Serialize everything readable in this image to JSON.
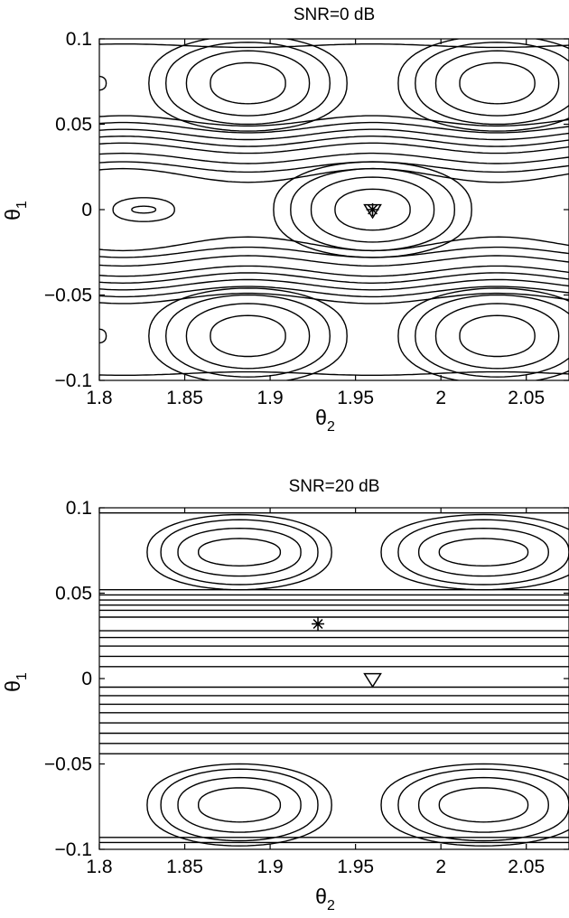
{
  "chart_data": [
    {
      "type": "contour",
      "title": "SNR=0 dB",
      "xlabel": "θ",
      "xlabel_sub": "2",
      "ylabel": "θ",
      "ylabel_sub": "1",
      "xlim": [
        1.8,
        2.075
      ],
      "ylim": [
        -0.1,
        0.1
      ],
      "xticks": [
        1.8,
        1.85,
        1.9,
        1.95,
        2,
        2.05
      ],
      "xtick_labels": [
        "1.8",
        "1.85",
        "1.9",
        "1.95",
        "2",
        "2.05"
      ],
      "yticks": [
        -0.1,
        -0.05,
        0,
        0.05,
        0.1
      ],
      "ytick_labels": [
        "−0.1",
        "−0.05",
        "0",
        "0.05",
        "0.1"
      ],
      "markers": [
        {
          "symbol": "asterisk",
          "x": 1.96,
          "y": 0.0
        },
        {
          "symbol": "triangle-down",
          "x": 1.96,
          "y": 0.0
        }
      ],
      "loops": [
        {
          "cx": 1.887,
          "cy": 0.074,
          "rx": [
            0.022,
            0.036,
            0.048,
            0.058
          ],
          "ry": [
            0.012,
            0.019,
            0.024,
            0.028
          ]
        },
        {
          "cx": 2.033,
          "cy": 0.074,
          "rx": [
            0.022,
            0.036,
            0.048,
            0.058
          ],
          "ry": [
            0.012,
            0.019,
            0.024,
            0.028
          ]
        },
        {
          "cx": 1.887,
          "cy": -0.074,
          "rx": [
            0.022,
            0.036,
            0.048,
            0.058
          ],
          "ry": [
            0.012,
            0.019,
            0.024,
            0.028
          ]
        },
        {
          "cx": 2.033,
          "cy": -0.074,
          "rx": [
            0.022,
            0.036,
            0.048,
            0.058
          ],
          "ry": [
            0.012,
            0.019,
            0.024,
            0.028
          ]
        },
        {
          "cx": 1.96,
          "cy": 0.0,
          "rx": [
            0.022,
            0.036,
            0.048,
            0.058
          ],
          "ry": [
            0.012,
            0.019,
            0.024,
            0.028
          ]
        },
        {
          "cx": 1.826,
          "cy": 0.0,
          "rx": [
            0.007,
            0.018
          ],
          "ry": [
            0.002,
            0.007
          ]
        },
        {
          "cx": 1.8,
          "cy": 0.074,
          "rx": [
            0.004
          ],
          "ry": [
            0.004
          ]
        },
        {
          "cx": 1.8,
          "cy": -0.074,
          "rx": [
            0.004
          ],
          "ry": [
            0.004
          ]
        }
      ],
      "waves": [
        {
          "y0": 0.036,
          "amp": 0.003
        },
        {
          "y0": 0.04,
          "amp": 0.003
        },
        {
          "y0": 0.044,
          "amp": 0.003
        },
        {
          "y0": 0.048,
          "amp": 0.003
        },
        {
          "y0": 0.052,
          "amp": 0.003
        },
        {
          "y0": 0.03,
          "amp": 0.003
        },
        {
          "y0": 0.025,
          "amp": 0.003
        },
        {
          "y0": 0.02,
          "amp": 0.004
        },
        {
          "y0": -0.02,
          "amp": 0.004
        },
        {
          "y0": -0.025,
          "amp": 0.003
        },
        {
          "y0": -0.03,
          "amp": 0.003
        },
        {
          "y0": -0.036,
          "amp": 0.003
        },
        {
          "y0": -0.04,
          "amp": 0.003
        },
        {
          "y0": -0.044,
          "amp": 0.003
        },
        {
          "y0": -0.048,
          "amp": 0.003
        },
        {
          "y0": -0.052,
          "amp": 0.003
        },
        {
          "y0": 0.096,
          "amp": 0.001
        },
        {
          "y0": -0.096,
          "amp": 0.001
        }
      ],
      "wave_center": 1.96,
      "wave_period": 0.146
    },
    {
      "type": "contour",
      "title": "SNR=20 dB",
      "xlabel": "θ",
      "xlabel_sub": "2",
      "ylabel": "θ",
      "ylabel_sub": "1",
      "xlim": [
        1.8,
        2.075
      ],
      "ylim": [
        -0.1,
        0.1
      ],
      "xticks": [
        1.8,
        1.85,
        1.9,
        1.95,
        2,
        2.05
      ],
      "xtick_labels": [
        "1.8",
        "1.85",
        "1.9",
        "1.95",
        "2",
        "2.05"
      ],
      "yticks": [
        -0.1,
        -0.05,
        0,
        0.05,
        0.1
      ],
      "ytick_labels": [
        "−0.1",
        "−0.05",
        "0",
        "0.05",
        "0.1"
      ],
      "markers": [
        {
          "symbol": "asterisk",
          "x": 1.928,
          "y": 0.032
        },
        {
          "symbol": "triangle-down",
          "x": 1.96,
          "y": 0.0
        }
      ],
      "loops": [
        {
          "cx": 1.882,
          "cy": 0.074,
          "rx": [
            0.024,
            0.036,
            0.046,
            0.054
          ],
          "ry": [
            0.008,
            0.014,
            0.019,
            0.022
          ]
        },
        {
          "cx": 2.025,
          "cy": 0.074,
          "rx": [
            0.026,
            0.038,
            0.05,
            0.06
          ],
          "ry": [
            0.008,
            0.014,
            0.019,
            0.022
          ]
        },
        {
          "cx": 1.882,
          "cy": -0.074,
          "rx": [
            0.024,
            0.036,
            0.046,
            0.054
          ],
          "ry": [
            0.01,
            0.016,
            0.021,
            0.024
          ]
        },
        {
          "cx": 2.025,
          "cy": -0.074,
          "rx": [
            0.026,
            0.038,
            0.05,
            0.06
          ],
          "ry": [
            0.01,
            0.016,
            0.021,
            0.024
          ]
        }
      ],
      "waves": [
        {
          "y0": 0.04,
          "amp": 0.0
        },
        {
          "y0": 0.043,
          "amp": 0.0
        },
        {
          "y0": 0.046,
          "amp": 0.0
        },
        {
          "y0": 0.049,
          "amp": 0.0
        },
        {
          "y0": 0.052,
          "amp": 0.0
        },
        {
          "y0": 0.036,
          "amp": 0.0
        },
        {
          "y0": 0.028,
          "amp": 0.0
        },
        {
          "y0": 0.024,
          "amp": 0.0
        },
        {
          "y0": 0.019,
          "amp": 0.0
        },
        {
          "y0": 0.013,
          "amp": 0.0
        },
        {
          "y0": 0.007,
          "amp": 0.0
        },
        {
          "y0": -0.005,
          "amp": 0.0
        },
        {
          "y0": -0.01,
          "amp": 0.0
        },
        {
          "y0": -0.015,
          "amp": 0.0
        },
        {
          "y0": -0.02,
          "amp": 0.0
        },
        {
          "y0": -0.026,
          "amp": 0.0
        },
        {
          "y0": -0.032,
          "amp": 0.0
        },
        {
          "y0": -0.038,
          "amp": 0.0
        },
        {
          "y0": -0.044,
          "amp": 0.0
        },
        {
          "y0": 0.097,
          "amp": 0.0
        },
        {
          "y0": -0.093,
          "amp": 0.0
        },
        {
          "y0": -0.096,
          "amp": 0.0
        }
      ],
      "wave_center": 1.928,
      "wave_period": 0.146
    }
  ]
}
